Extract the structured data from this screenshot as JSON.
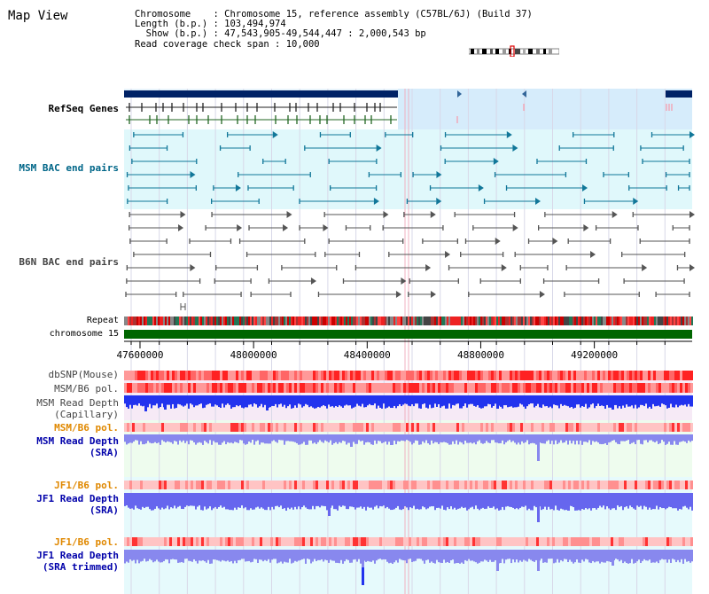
{
  "app_title": "Map View",
  "info": {
    "chromosome_label": "Chromosome",
    "chromosome_value": "Chromosome 15, reference assembly (C57BL/6J) (Build 37)",
    "length_label": "Length (b.p.)",
    "length_value": "103,494,974",
    "show_label": "Show (b.p.)",
    "show_value": "47,543,905-49,544,447 : 2,000,543 bp",
    "span_label": "Read coverage check span",
    "span_value": "10,000"
  },
  "track_labels": {
    "refseq": "RefSeq Genes",
    "msm_bac": "MSM BAC end pairs",
    "b6n_bac": "B6N BAC end pairs",
    "repeat": "Repeat",
    "chromosome": "chromosome 15",
    "dbsnp": "dbSNP(Mouse)",
    "msm_b6_pol_1": "MSM/B6 pol.",
    "msm_read_depth_cap_1": "MSM Read Depth",
    "msm_read_depth_cap_2": "(Capillary)",
    "msm_b6_pol_2": "MSM/B6 pol.",
    "msm_read_depth_sra_1": "MSM Read Depth",
    "msm_read_depth_sra_2": "(SRA)",
    "jf1_b6_pol_1": "JF1/B6 pol.",
    "jf1_read_depth_sra_1": "JF1 Read Depth",
    "jf1_read_depth_sra_2": "(SRA)",
    "jf1_b6_pol_2": "JF1/B6 pol.",
    "jf1_read_depth_trim_1": "JF1 Read Depth",
    "jf1_read_depth_trim_2": "(SRA trimmed)"
  },
  "axis": {
    "start_bp": 47543905,
    "end_bp": 49544447,
    "ticks": [
      "47600000",
      "48000000",
      "48400000",
      "48800000",
      "49200000"
    ]
  },
  "colors": {
    "link_blue": "#0000aa",
    "msm_teal": "#006688",
    "b6n_gray": "#444444",
    "pol_orange": "#e08800",
    "chromosome_green": "#006600",
    "gene_navy": "#002266"
  }
}
